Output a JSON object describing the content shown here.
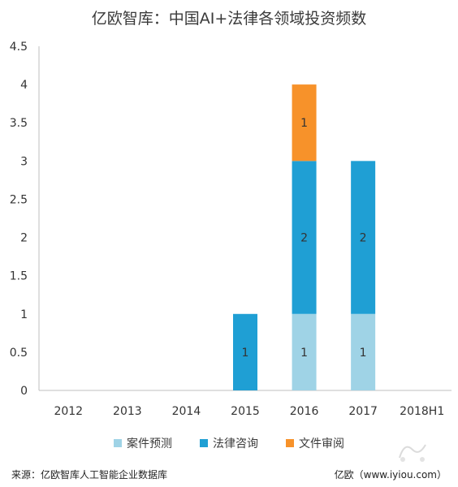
{
  "chart_data": {
    "type": "bar",
    "stacked": true,
    "title": "亿欧智库：中国AI+法律各领域投资频数",
    "categories": [
      "2012",
      "2013",
      "2014",
      "2015",
      "2016",
      "2017",
      "2018H1"
    ],
    "series": [
      {
        "name": "案件预测",
        "color": "#9fd3e6",
        "values": [
          0,
          0,
          0,
          0,
          1,
          1,
          0
        ]
      },
      {
        "name": "法律咨询",
        "color": "#1f9fd4",
        "values": [
          0,
          0,
          0,
          1,
          2,
          2,
          0
        ]
      },
      {
        "name": "文件审阅",
        "color": "#f7922a",
        "values": [
          0,
          0,
          0,
          0,
          1,
          0,
          0
        ]
      }
    ],
    "yticks": [
      "0",
      "0.5",
      "1",
      "1.5",
      "2",
      "2.5",
      "3",
      "3.5",
      "4",
      "4.5"
    ],
    "ylim": [
      0,
      4.5
    ],
    "grid": false,
    "legend_position": "bottom"
  },
  "footer": {
    "source": "来源：亿欧智库人工智能企业数据库",
    "brand": "亿欧（www.iyiou.com）"
  }
}
